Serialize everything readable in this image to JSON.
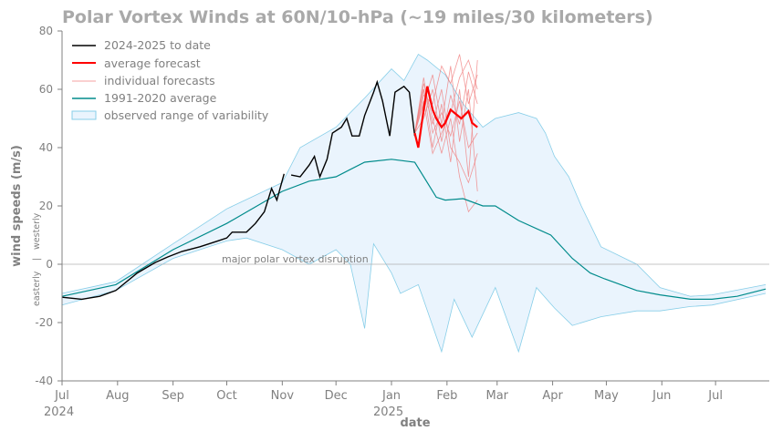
{
  "chart_data": {
    "type": "line",
    "title": "Polar Vortex Winds at 60N/10-hPa (~19 miles/30 kilometers)",
    "xlabel": "date",
    "ylabel": "wind speeds (m/s)",
    "ylabel_sub": {
      "easterly": "easterly",
      "sep": "|",
      "westerly": "westerly"
    },
    "x_unit": "days since 2024-07-01",
    "xlim": [
      0,
      395
    ],
    "ylim": [
      -40,
      80
    ],
    "yticks": [
      -40,
      -20,
      0,
      20,
      40,
      60,
      80
    ],
    "xticks": [
      {
        "day": 0,
        "label": "Jul",
        "year": "2024"
      },
      {
        "day": 31,
        "label": "Aug"
      },
      {
        "day": 62,
        "label": "Sep"
      },
      {
        "day": 92,
        "label": "Oct"
      },
      {
        "day": 123,
        "label": "Nov"
      },
      {
        "day": 153,
        "label": "Dec"
      },
      {
        "day": 184,
        "label": "Jan",
        "year": "2025"
      },
      {
        "day": 215,
        "label": "Feb"
      },
      {
        "day": 243,
        "label": "Mar"
      },
      {
        "day": 274,
        "label": "Apr"
      },
      {
        "day": 304,
        "label": "May"
      },
      {
        "day": 335,
        "label": "Jun"
      },
      {
        "day": 365,
        "label": "Jul"
      }
    ],
    "annotation": "major polar vortex disruption",
    "legend": {
      "placement": "top-left",
      "entries": [
        "2024-2025 to date",
        "average forecast",
        "individual forecasts",
        "1991-2020 average",
        "observed range of variability"
      ]
    },
    "colors": {
      "observed": "#000000",
      "avg_forecast": "#ff0000",
      "individual": "#f08080",
      "climatology": "#008b8b",
      "range_fill": "#eaf4fd",
      "range_edge": "#87cee8"
    },
    "series": {
      "observed": [
        [
          [
            0,
            -11.3
          ],
          [
            11,
            -12
          ],
          [
            21,
            -11
          ],
          [
            30,
            -9
          ],
          [
            42,
            -3
          ],
          [
            52,
            0.6
          ],
          [
            59,
            2.5
          ],
          [
            67,
            4.4
          ],
          [
            77,
            6
          ],
          [
            87,
            8
          ],
          [
            92,
            9
          ],
          [
            95,
            11
          ],
          [
            103,
            11
          ],
          [
            108,
            14
          ],
          [
            113,
            18
          ],
          [
            117,
            26
          ],
          [
            120,
            22
          ],
          [
            124,
            31
          ]
        ],
        [
          [
            128,
            30.6
          ],
          [
            133,
            30
          ],
          [
            138,
            34
          ],
          [
            141,
            37
          ],
          [
            144,
            30
          ],
          [
            148,
            36
          ],
          [
            151,
            45
          ],
          [
            156,
            47
          ],
          [
            159,
            50
          ],
          [
            162,
            44
          ],
          [
            166,
            44
          ],
          [
            169,
            51
          ],
          [
            174,
            59
          ],
          [
            176,
            62.5
          ],
          [
            179,
            56
          ],
          [
            183,
            44
          ],
          [
            186,
            59
          ],
          [
            191,
            61
          ],
          [
            194,
            59
          ],
          [
            197,
            44
          ]
        ]
      ],
      "average_forecast": [
        [
          197,
          45
        ],
        [
          199,
          40
        ],
        [
          202,
          53
        ],
        [
          204,
          61
        ],
        [
          207,
          53
        ],
        [
          209,
          50
        ],
        [
          212,
          47
        ],
        [
          214,
          48.5
        ],
        [
          217,
          53
        ],
        [
          219,
          52
        ],
        [
          223,
          50
        ],
        [
          227,
          52.5
        ],
        [
          229,
          48.5
        ],
        [
          232,
          47
        ]
      ],
      "individual_forecasts": [
        [
          [
            197,
            45
          ],
          [
            202,
            60
          ],
          [
            207,
            40
          ],
          [
            212,
            55
          ],
          [
            217,
            35
          ],
          [
            222,
            60
          ],
          [
            227,
            30
          ],
          [
            232,
            70
          ]
        ],
        [
          [
            197,
            45
          ],
          [
            202,
            55
          ],
          [
            207,
            65
          ],
          [
            212,
            48
          ],
          [
            217,
            68
          ],
          [
            222,
            42
          ],
          [
            227,
            60
          ],
          [
            232,
            25
          ]
        ],
        [
          [
            197,
            45
          ],
          [
            202,
            62
          ],
          [
            207,
            50
          ],
          [
            212,
            38
          ],
          [
            217,
            50
          ],
          [
            222,
            30
          ],
          [
            227,
            18
          ],
          [
            232,
            22
          ]
        ],
        [
          [
            197,
            45
          ],
          [
            202,
            58
          ],
          [
            207,
            55
          ],
          [
            212,
            68
          ],
          [
            217,
            62
          ],
          [
            222,
            72
          ],
          [
            227,
            55
          ],
          [
            232,
            65
          ]
        ],
        [
          [
            197,
            45
          ],
          [
            202,
            64
          ],
          [
            207,
            45
          ],
          [
            212,
            52
          ],
          [
            217,
            44
          ],
          [
            222,
            56
          ],
          [
            227,
            40
          ],
          [
            232,
            45
          ]
        ],
        [
          [
            197,
            45
          ],
          [
            202,
            50
          ],
          [
            207,
            60
          ],
          [
            212,
            42
          ],
          [
            217,
            58
          ],
          [
            222,
            48
          ],
          [
            227,
            66
          ],
          [
            232,
            55
          ]
        ],
        [
          [
            197,
            45
          ],
          [
            202,
            60
          ],
          [
            207,
            48
          ],
          [
            212,
            60
          ],
          [
            217,
            40
          ],
          [
            222,
            35
          ],
          [
            227,
            28
          ],
          [
            232,
            38
          ]
        ],
        [
          [
            197,
            45
          ],
          [
            202,
            56
          ],
          [
            207,
            38
          ],
          [
            212,
            45
          ],
          [
            217,
            52
          ],
          [
            222,
            64
          ],
          [
            227,
            70
          ],
          [
            232,
            60
          ]
        ]
      ],
      "climatology": [
        [
          0,
          -11
        ],
        [
          30,
          -7
        ],
        [
          62,
          5
        ],
        [
          92,
          14
        ],
        [
          123,
          25
        ],
        [
          138,
          28.5
        ],
        [
          153,
          30
        ],
        [
          169,
          35
        ],
        [
          184,
          36
        ],
        [
          197,
          35
        ],
        [
          204,
          28
        ],
        [
          209,
          23
        ],
        [
          214,
          22
        ],
        [
          224,
          22.5
        ],
        [
          235,
          20
        ],
        [
          242,
          20
        ],
        [
          255,
          15
        ],
        [
          273,
          10
        ],
        [
          285,
          2
        ],
        [
          295,
          -3
        ],
        [
          303,
          -5
        ],
        [
          321,
          -9
        ],
        [
          334,
          -10.5
        ],
        [
          351,
          -12
        ],
        [
          363,
          -12
        ],
        [
          377,
          -11
        ],
        [
          393,
          -8.5
        ]
      ],
      "range_upper": [
        [
          0,
          -10
        ],
        [
          30,
          -6
        ],
        [
          62,
          7
        ],
        [
          92,
          19
        ],
        [
          123,
          28
        ],
        [
          133,
          40
        ],
        [
          153,
          47
        ],
        [
          169,
          57
        ],
        [
          184,
          67
        ],
        [
          191,
          63
        ],
        [
          199,
          72
        ],
        [
          204,
          70
        ],
        [
          214,
          65
        ],
        [
          224,
          55
        ],
        [
          235,
          47
        ],
        [
          242,
          50
        ],
        [
          255,
          52
        ],
        [
          265,
          50
        ],
        [
          270,
          45
        ],
        [
          275,
          37
        ],
        [
          283,
          30
        ],
        [
          290,
          20
        ],
        [
          301,
          6
        ],
        [
          321,
          0
        ],
        [
          334,
          -8
        ],
        [
          351,
          -11
        ],
        [
          363,
          -10.5
        ],
        [
          393,
          -7
        ]
      ],
      "range_lower": [
        [
          0,
          -14
        ],
        [
          30,
          -9
        ],
        [
          62,
          2
        ],
        [
          92,
          8
        ],
        [
          103,
          9
        ],
        [
          123,
          5
        ],
        [
          138,
          0
        ],
        [
          153,
          5
        ],
        [
          161,
          0
        ],
        [
          169,
          -22
        ],
        [
          174,
          7
        ],
        [
          184,
          -3
        ],
        [
          189,
          -10
        ],
        [
          199,
          -7
        ],
        [
          212,
          -30
        ],
        [
          219,
          -12
        ],
        [
          229,
          -25
        ],
        [
          242,
          -8
        ],
        [
          255,
          -30
        ],
        [
          265,
          -8
        ],
        [
          275,
          -15
        ],
        [
          285,
          -21
        ],
        [
          301,
          -18
        ],
        [
          321,
          -16
        ],
        [
          334,
          -16
        ],
        [
          351,
          -14.5
        ],
        [
          363,
          -14
        ],
        [
          393,
          -10
        ]
      ]
    }
  }
}
